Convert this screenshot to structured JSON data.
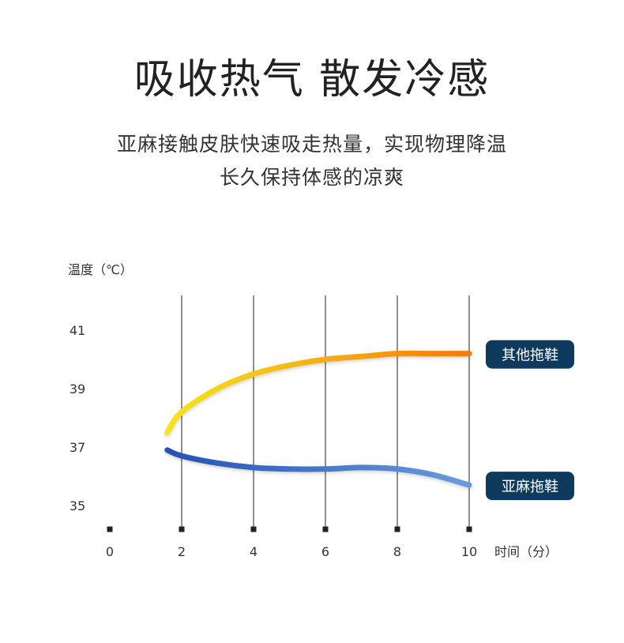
{
  "header": {
    "title": "吸收热气 散发冷感",
    "subtitle_line1": "亚麻接触皮肤快速吸走热量，实现物理降温",
    "subtitle_line2": "长久保持体感的凉爽"
  },
  "chart_data": {
    "type": "line",
    "ylabel": "温度（℃）",
    "xlabel": "时间（分）",
    "x_ticks": [
      0,
      2,
      4,
      6,
      8,
      10
    ],
    "y_ticks": [
      35,
      37,
      39,
      41
    ],
    "xlim": [
      0,
      10
    ],
    "ylim": [
      34.2,
      41.6
    ],
    "grid": "vertical",
    "series": [
      {
        "name": "其他拖鞋",
        "colors": [
          "#f5e51a",
          "#f57a0c"
        ],
        "label_bg": "#0e3a5e",
        "points": [
          [
            1.6,
            37.5
          ],
          [
            2,
            38.2
          ],
          [
            3,
            39.0
          ],
          [
            4,
            39.5
          ],
          [
            5,
            39.8
          ],
          [
            6,
            40.0
          ],
          [
            7,
            40.1
          ],
          [
            8,
            40.2
          ],
          [
            9,
            40.2
          ],
          [
            10,
            40.2
          ]
        ]
      },
      {
        "name": "亚麻拖鞋",
        "colors": [
          "#2552b5",
          "#6a9bd9"
        ],
        "label_bg": "#0e3a5e",
        "points": [
          [
            1.6,
            36.9
          ],
          [
            2,
            36.7
          ],
          [
            3,
            36.45
          ],
          [
            4,
            36.3
          ],
          [
            5,
            36.25
          ],
          [
            6,
            36.25
          ],
          [
            7,
            36.3
          ],
          [
            8,
            36.25
          ],
          [
            9,
            36.05
          ],
          [
            10,
            35.7
          ]
        ]
      }
    ]
  }
}
